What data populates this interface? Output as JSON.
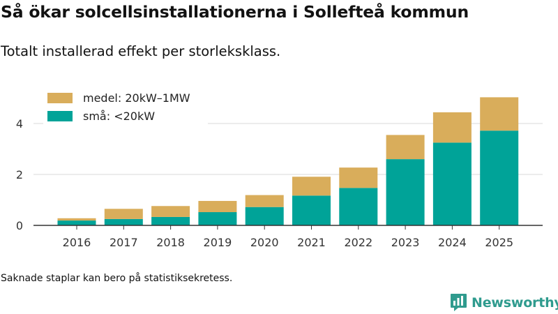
{
  "header": {
    "title": "Så ökar solcellsinstallationerna i Sollefteå kommun",
    "subtitle": "Totalt installerad effekt per storleksklass."
  },
  "footer": {
    "note": "Saknade staplar kan bero på statistiksekretess.",
    "brand": "Newsworthy"
  },
  "colors": {
    "small": "#00a398",
    "medium": "#d9ad5b",
    "grid": "#d9d9d9",
    "axis": "#333333",
    "brand": "#2f9b8e"
  },
  "chart_data": {
    "type": "bar",
    "stacked": true,
    "title": "Så ökar solcellsinstallationerna i Sollefteå kommun",
    "subtitle": "Totalt installerad effekt per storleksklass.",
    "xlabel": "",
    "ylabel": "",
    "categories": [
      "2016",
      "2017",
      "2018",
      "2019",
      "2020",
      "2021",
      "2022",
      "2023",
      "2024",
      "2025"
    ],
    "series": [
      {
        "name": "små: <20kW",
        "color": "#00a398",
        "values": [
          0.19,
          0.25,
          0.33,
          0.52,
          0.72,
          1.17,
          1.47,
          2.6,
          3.25,
          3.72
        ]
      },
      {
        "name": "medel: 20kW–1MW",
        "color": "#d9ad5b",
        "values": [
          0.09,
          0.4,
          0.43,
          0.44,
          0.47,
          0.74,
          0.8,
          0.95,
          1.19,
          1.31
        ]
      }
    ],
    "ylim": [
      0,
      5.2
    ],
    "yticks": [
      0,
      2,
      4
    ],
    "grid": true,
    "legend": {
      "position": "top-left",
      "order": [
        "medel: 20kW–1MW",
        "små: <20kW"
      ]
    }
  }
}
